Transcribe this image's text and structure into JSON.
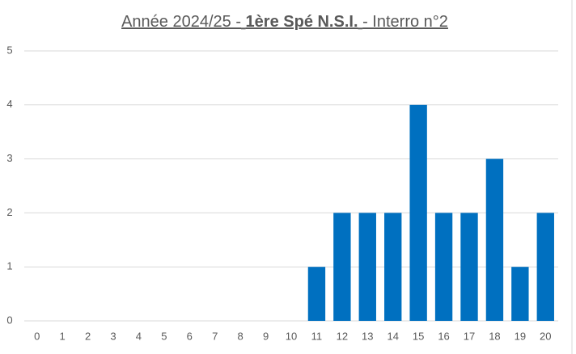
{
  "chart_data": {
    "type": "bar",
    "title": [
      "Année 2024/25 -",
      "1ère Spé N.S.I.",
      "- Interro n°2"
    ],
    "categories": [
      "0",
      "1",
      "2",
      "3",
      "4",
      "5",
      "6",
      "7",
      "8",
      "9",
      "10",
      "11",
      "12",
      "13",
      "14",
      "15",
      "16",
      "17",
      "18",
      "19",
      "20"
    ],
    "values": [
      0,
      0,
      0,
      0,
      0,
      0,
      0,
      0,
      0,
      0,
      0,
      1,
      2,
      2,
      2,
      4,
      2,
      2,
      3,
      1,
      2
    ],
    "color": "#0070c0",
    "ylim": [
      0,
      5
    ],
    "yticks": [
      0,
      1,
      2,
      3,
      4,
      5
    ],
    "grid": true
  }
}
